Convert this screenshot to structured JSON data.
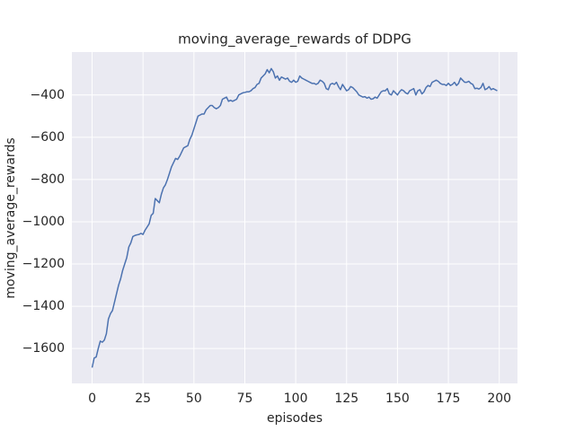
{
  "chart_data": {
    "type": "line",
    "title": "moving_average_rewards of DDPG",
    "x_label": "episodes",
    "y_label": "moving_average_rewards",
    "color": "#4c72b0",
    "grid": true,
    "x": [
      0,
      1,
      2,
      3,
      4,
      5,
      6,
      7,
      8,
      9,
      10,
      11,
      12,
      13,
      14,
      15,
      16,
      17,
      18,
      19,
      20,
      21,
      22,
      23,
      24,
      25,
      26,
      27,
      28,
      29,
      30,
      31,
      32,
      33,
      34,
      35,
      36,
      37,
      38,
      39,
      40,
      41,
      42,
      43,
      44,
      45,
      46,
      47,
      48,
      49,
      50,
      51,
      52,
      53,
      54,
      55,
      56,
      57,
      58,
      59,
      60,
      61,
      62,
      63,
      64,
      65,
      66,
      67,
      68,
      69,
      70,
      71,
      72,
      73,
      74,
      75,
      76,
      77,
      78,
      79,
      80,
      81,
      82,
      83,
      84,
      85,
      86,
      87,
      88,
      89,
      90,
      91,
      92,
      93,
      94,
      95,
      96,
      97,
      98,
      99,
      100,
      101,
      102,
      103,
      104,
      105,
      106,
      107,
      108,
      109,
      110,
      111,
      112,
      113,
      114,
      115,
      116,
      117,
      118,
      119,
      120,
      121,
      122,
      123,
      124,
      125,
      126,
      127,
      128,
      129,
      130,
      131,
      132,
      133,
      134,
      135,
      136,
      137,
      138,
      139,
      140,
      141,
      142,
      143,
      144,
      145,
      146,
      147,
      148,
      149,
      150,
      151,
      152,
      153,
      154,
      155,
      156,
      157,
      158,
      159,
      160,
      161,
      162,
      163,
      164,
      165,
      166,
      167,
      168,
      169,
      170,
      171,
      172,
      173,
      174,
      175,
      176,
      177,
      178,
      179,
      180,
      181,
      182,
      183,
      184,
      185,
      186,
      187,
      188,
      189,
      190,
      191,
      192,
      193,
      194,
      195,
      196,
      197,
      198,
      199
    ],
    "values": [
      -1690,
      -1645,
      -1640,
      -1600,
      -1565,
      -1570,
      -1560,
      -1530,
      -1460,
      -1435,
      -1420,
      -1380,
      -1340,
      -1300,
      -1270,
      -1230,
      -1200,
      -1170,
      -1120,
      -1100,
      -1070,
      -1065,
      -1062,
      -1060,
      -1055,
      -1060,
      -1040,
      -1025,
      -1010,
      -970,
      -960,
      -890,
      -900,
      -910,
      -870,
      -840,
      -825,
      -800,
      -770,
      -740,
      -720,
      -700,
      -705,
      -690,
      -670,
      -650,
      -645,
      -640,
      -610,
      -590,
      -560,
      -530,
      -500,
      -495,
      -490,
      -490,
      -470,
      -460,
      -450,
      -450,
      -460,
      -465,
      -460,
      -450,
      -420,
      -415,
      -410,
      -430,
      -425,
      -430,
      -425,
      -420,
      -400,
      -395,
      -390,
      -388,
      -385,
      -385,
      -380,
      -370,
      -365,
      -350,
      -345,
      -320,
      -310,
      -300,
      -280,
      -295,
      -275,
      -290,
      -320,
      -310,
      -330,
      -315,
      -320,
      -325,
      -320,
      -335,
      -340,
      -330,
      -340,
      -335,
      -310,
      -320,
      -325,
      -330,
      -335,
      -340,
      -345,
      -345,
      -350,
      -345,
      -330,
      -335,
      -345,
      -370,
      -375,
      -350,
      -345,
      -350,
      -340,
      -360,
      -375,
      -350,
      -365,
      -380,
      -375,
      -360,
      -365,
      -375,
      -385,
      -400,
      -405,
      -410,
      -408,
      -415,
      -410,
      -420,
      -418,
      -410,
      -415,
      -400,
      -385,
      -380,
      -380,
      -370,
      -395,
      -400,
      -380,
      -390,
      -400,
      -385,
      -375,
      -380,
      -390,
      -395,
      -380,
      -375,
      -370,
      -400,
      -380,
      -375,
      -395,
      -385,
      -365,
      -355,
      -360,
      -340,
      -335,
      -330,
      -335,
      -345,
      -350,
      -350,
      -355,
      -345,
      -355,
      -350,
      -340,
      -355,
      -345,
      -320,
      -330,
      -340,
      -340,
      -335,
      -345,
      -350,
      -370,
      -368,
      -372,
      -365,
      -345,
      -375,
      -370,
      -360,
      -375,
      -370,
      -375,
      -380
    ],
    "xlim": [
      -9.95,
      208.95
    ],
    "xticks": [
      0,
      25,
      50,
      75,
      100,
      125,
      150,
      175,
      200
    ],
    "ylim": [
      -1765,
      -197
    ],
    "yticks": [
      {
        "value": -1600,
        "label": "−1600"
      },
      {
        "value": -1400,
        "label": "−1400"
      },
      {
        "value": -1200,
        "label": "−1200"
      },
      {
        "value": -1000,
        "label": "−1000"
      },
      {
        "value": -800,
        "label": "−800"
      },
      {
        "value": -600,
        "label": "−600"
      },
      {
        "value": -400,
        "label": "−400"
      }
    ]
  }
}
